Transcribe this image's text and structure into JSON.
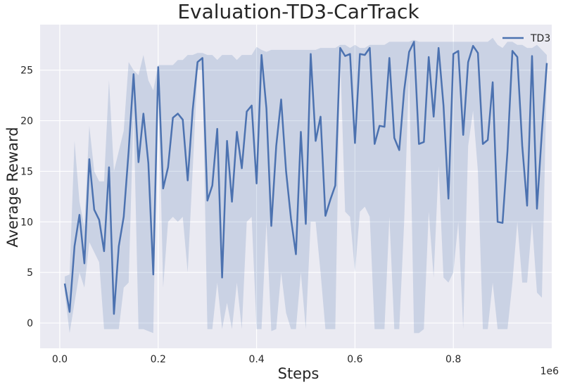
{
  "chart_data": {
    "type": "line",
    "title": "Evaluation-TD3-CarTrack",
    "xlabel": "Steps",
    "ylabel": "Average Reward",
    "x_offset_label": "1e6",
    "xlim": [
      -0.04,
      1.0
    ],
    "ylim": [
      -2.5,
      29.5
    ],
    "xticks": [
      0.0,
      0.2,
      0.4,
      0.6,
      0.8
    ],
    "xtick_labels": [
      "0.0",
      "0.2",
      "0.4",
      "0.6",
      "0.8"
    ],
    "yticks": [
      0,
      5,
      10,
      15,
      20,
      25
    ],
    "ytick_labels": [
      "0",
      "5",
      "10",
      "15",
      "20",
      "25"
    ],
    "grid": true,
    "legend_position": "top-right",
    "colors": {
      "background": "#EAEAF2",
      "grid": "#FFFFFF",
      "line": "#4C72B0",
      "band": "#4C72B0"
    },
    "series": [
      {
        "name": "TD3",
        "x": [
          0.01,
          0.02,
          0.03,
          0.04,
          0.05,
          0.06,
          0.07,
          0.08,
          0.09,
          0.1,
          0.11,
          0.12,
          0.13,
          0.14,
          0.15,
          0.16,
          0.17,
          0.18,
          0.19,
          0.2,
          0.21,
          0.22,
          0.23,
          0.24,
          0.25,
          0.26,
          0.27,
          0.28,
          0.29,
          0.3,
          0.31,
          0.32,
          0.33,
          0.34,
          0.35,
          0.36,
          0.37,
          0.38,
          0.39,
          0.4,
          0.41,
          0.42,
          0.43,
          0.44,
          0.45,
          0.46,
          0.47,
          0.48,
          0.49,
          0.5,
          0.51,
          0.52,
          0.53,
          0.54,
          0.55,
          0.56,
          0.57,
          0.58,
          0.59,
          0.6,
          0.61,
          0.62,
          0.63,
          0.64,
          0.65,
          0.66,
          0.67,
          0.68,
          0.69,
          0.7,
          0.71,
          0.72,
          0.73,
          0.74,
          0.75,
          0.76,
          0.77,
          0.78,
          0.79,
          0.8,
          0.81,
          0.82,
          0.83,
          0.84,
          0.85,
          0.86,
          0.87,
          0.88,
          0.89,
          0.9,
          0.91,
          0.92,
          0.93,
          0.94,
          0.95,
          0.96,
          0.97,
          0.98,
          0.99
        ],
        "y": [
          3.9,
          1.1,
          7.6,
          10.7,
          5.9,
          16.2,
          11.2,
          10.2,
          7.1,
          15.4,
          0.9,
          7.6,
          10.5,
          17.0,
          24.6,
          15.9,
          20.7,
          15.8,
          4.8,
          25.3,
          13.3,
          15.4,
          20.3,
          20.7,
          20.1,
          14.1,
          21.0,
          25.8,
          26.2,
          12.1,
          13.6,
          19.2,
          4.5,
          18.0,
          12.0,
          18.9,
          15.3,
          20.9,
          21.5,
          13.8,
          26.5,
          21.2,
          9.6,
          17.5,
          22.1,
          15.0,
          10.3,
          6.8,
          18.9,
          9.8,
          26.6,
          18.0,
          20.4,
          10.6,
          12.2,
          13.6,
          27.2,
          26.4,
          26.6,
          17.8,
          26.6,
          26.5,
          27.2,
          17.7,
          19.5,
          19.4,
          26.2,
          18.3,
          17.1,
          23.0,
          26.8,
          27.8,
          17.7,
          17.9,
          26.3,
          20.4,
          27.2,
          21.5,
          12.3,
          26.6,
          26.9,
          18.6,
          25.8,
          27.4,
          26.7,
          17.7,
          18.1,
          23.8,
          10.0,
          9.9,
          17.0,
          26.9,
          26.3,
          17.5,
          11.6,
          26.4,
          11.3,
          18.9,
          25.7
        ],
        "band_upper": [
          4.6,
          4.8,
          18.0,
          12.0,
          9.5,
          19.5,
          15.0,
          14.0,
          14.0,
          24.0,
          15.0,
          17.0,
          19.0,
          25.8,
          25.0,
          24.5,
          26.5,
          24.0,
          23.0,
          25.5,
          25.5,
          25.5,
          25.5,
          26.0,
          26.0,
          26.5,
          26.5,
          26.7,
          26.7,
          26.5,
          26.5,
          26.0,
          26.5,
          26.5,
          26.5,
          26.0,
          26.5,
          26.5,
          26.5,
          27.3,
          27.0,
          26.8,
          27.0,
          27.0,
          27.0,
          27.0,
          27.0,
          27.0,
          27.0,
          27.0,
          27.0,
          27.0,
          27.2,
          27.2,
          27.2,
          27.2,
          27.5,
          27.5,
          27.2,
          27.5,
          27.2,
          27.2,
          27.5,
          27.5,
          27.5,
          27.5,
          27.8,
          27.8,
          27.8,
          27.8,
          27.8,
          28.0,
          27.8,
          27.8,
          27.8,
          27.8,
          27.8,
          27.8,
          27.8,
          27.8,
          27.8,
          27.8,
          27.8,
          27.8,
          27.8,
          27.8,
          27.8,
          28.2,
          27.5,
          27.2,
          27.8,
          27.8,
          27.5,
          27.5,
          27.2,
          27.2,
          27.5,
          27.0,
          26.5
        ],
        "band_lower": [
          3.0,
          -1.0,
          2.0,
          5.0,
          3.5,
          8.0,
          7.0,
          6.0,
          -0.6,
          -0.6,
          -0.6,
          -0.6,
          3.5,
          4.0,
          21.0,
          -0.6,
          -0.6,
          -0.8,
          -1.0,
          25.0,
          3.5,
          10.0,
          10.5,
          10.0,
          10.5,
          5.0,
          15.0,
          25.0,
          25.0,
          -0.6,
          -0.6,
          4.0,
          -0.6,
          2.0,
          -0.6,
          4.0,
          -0.6,
          10.0,
          10.5,
          -0.6,
          -0.6,
          10.0,
          -0.8,
          -0.6,
          5.0,
          1.0,
          -0.6,
          -0.6,
          5.0,
          -0.6,
          10.0,
          10.0,
          5.0,
          -0.6,
          -0.6,
          -0.6,
          26.5,
          11.0,
          10.5,
          5.0,
          11.0,
          11.5,
          10.5,
          -0.6,
          -0.6,
          -0.6,
          10.5,
          -0.6,
          -0.6,
          10.0,
          25.0,
          -1.0,
          -1.0,
          -0.6,
          11.0,
          4.5,
          15.5,
          4.5,
          4.0,
          5.0,
          10.0,
          -0.6,
          17.5,
          21.0,
          15.0,
          -0.6,
          -0.6,
          4.0,
          -0.6,
          -0.6,
          -0.6,
          4.0,
          10.0,
          4.0,
          4.0,
          10.0,
          3.0,
          2.5,
          24.5
        ]
      }
    ]
  }
}
